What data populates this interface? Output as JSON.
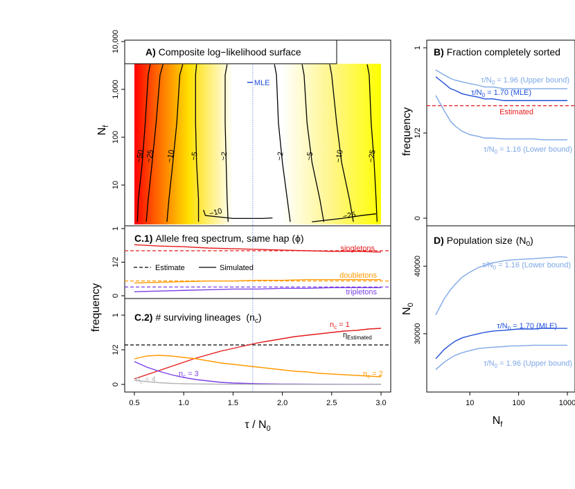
{
  "chart_data": [
    {
      "panel": "A",
      "type": "heatmap",
      "title_letter": "A)",
      "title": "Composite log−likelihood surface",
      "ylabel": "N",
      "ylabel_sub": "f",
      "xlim": [
        0.5,
        3.0
      ],
      "ylim": [
        1.5,
        10000
      ],
      "y_scale": "log",
      "y_ticks": [
        10,
        100,
        1000,
        10000
      ],
      "y_tick_labels": [
        "10",
        "100",
        "1,000",
        "10,000"
      ],
      "colors": {
        "low": "#ff0000",
        "mid": "#ffff00",
        "high": "#ffffff"
      },
      "contours": [
        {
          "label": "−50",
          "x": [
            0.53,
            0.54,
            0.58,
            0.61,
            0.64,
            0.66
          ]
        },
        {
          "label": "−25",
          "x": [
            0.62,
            0.64,
            0.68,
            0.72,
            0.76,
            0.79
          ]
        },
        {
          "label": "−10",
          "x": [
            0.83,
            0.85,
            0.89,
            0.93,
            0.96,
            0.99
          ]
        },
        {
          "label": "−5",
          "x": [
            1.15,
            1.15,
            1.13,
            1.12,
            1.12,
            1.13
          ]
        },
        {
          "label": "−2",
          "x": [
            1.45,
            1.44,
            1.43,
            1.42,
            1.42,
            1.44
          ]
        },
        {
          "label": "−2",
          "x": [
            2.08,
            2.05,
            2.0,
            1.96,
            1.94,
            1.92
          ]
        },
        {
          "label": "−5",
          "x": [
            2.42,
            2.38,
            2.3,
            2.25,
            2.22,
            2.2
          ]
        },
        {
          "label": "−10",
          "x": [
            2.72,
            2.68,
            2.6,
            2.55,
            2.5,
            2.48
          ]
        },
        {
          "label": "−25",
          "x": [
            2.96,
            2.95,
            2.93,
            2.9,
            2.88,
            2.86
          ]
        }
      ],
      "contour_y": [
        1.7,
        5,
        30,
        200,
        2000,
        10000
      ],
      "inner_contour": {
        "label": "−10",
        "x": [
          1.2,
          1.22,
          1.5,
          1.8,
          1.9
        ],
        "y": [
          3,
          2.3,
          2.0,
          2.0,
          2.05
        ]
      },
      "lower_contour": {
        "label": "−25",
        "x": [
          2.3,
          2.6,
          2.8,
          2.95
        ],
        "y": [
          1.7,
          2.0,
          2.3,
          2.5
        ]
      },
      "mle": {
        "label": "MLE",
        "x": 1.7,
        "y": 1400
      }
    },
    {
      "panel": "C.1",
      "type": "line",
      "title_letter": "C.1)",
      "title": "Allele freq spectrum, same hap (ϕ)",
      "xlim": [
        0.5,
        3.0
      ],
      "ylim": [
        0,
        1
      ],
      "y_tick_labels": [
        "0",
        "1/2",
        "1"
      ],
      "legend": {
        "estimate": "Estimate",
        "simulated": "Simulated",
        "placement": "left"
      },
      "x": [
        0.5,
        0.75,
        1.0,
        1.25,
        1.5,
        1.75,
        2.0,
        2.25,
        2.5,
        2.75,
        3.0
      ],
      "series": [
        {
          "name": "singletons",
          "color": "#e41a1c",
          "estimate": 0.67,
          "values": [
            0.76,
            0.74,
            0.73,
            0.71,
            0.7,
            0.69,
            0.68,
            0.67,
            0.66,
            0.66,
            0.65
          ]
        },
        {
          "name": "doubletons",
          "color": "#ff9900",
          "estimate": 0.22,
          "values": [
            0.19,
            0.2,
            0.21,
            0.22,
            0.22,
            0.23,
            0.23,
            0.24,
            0.24,
            0.24,
            0.24
          ]
        },
        {
          "name": "tripletons",
          "color": "#7b3fe4",
          "estimate": 0.13,
          "values": [
            0.06,
            0.07,
            0.08,
            0.09,
            0.1,
            0.1,
            0.11,
            0.11,
            0.12,
            0.12,
            0.12
          ]
        }
      ]
    },
    {
      "panel": "C.2",
      "type": "line",
      "title_letter": "C.2)",
      "title": "# surviving lineages",
      "title_symbol": "n",
      "title_symbol_sub": "c",
      "ylabel": "frequency",
      "xlabel": "τ / N",
      "xlabel_sub": "0",
      "xlim": [
        0.5,
        3.0
      ],
      "x_ticks": [
        0.5,
        1.0,
        1.5,
        2.0,
        2.5,
        3.0
      ],
      "x_tick_labels": [
        "0.5",
        "1.0",
        "1.5",
        "2.0",
        "2.5",
        "3.0"
      ],
      "ylim": [
        0,
        1
      ],
      "y_tick_labels": [
        "0",
        "1/2",
        "1"
      ],
      "estimate_line": {
        "value": 0.57,
        "label": "η",
        "label_sub": "Estimated"
      },
      "x": [
        0.5,
        0.625,
        0.75,
        0.875,
        1.0,
        1.125,
        1.25,
        1.375,
        1.5,
        1.625,
        1.75,
        1.875,
        2.0,
        2.125,
        2.25,
        2.375,
        2.5,
        2.625,
        2.75,
        2.875,
        3.0
      ],
      "series": [
        {
          "name": "n",
          "name_sub": "c",
          "name_suffix": " = 1",
          "color": "#e41a1c",
          "values": [
            0.08,
            0.14,
            0.2,
            0.26,
            0.32,
            0.38,
            0.43,
            0.48,
            0.52,
            0.56,
            0.6,
            0.63,
            0.66,
            0.69,
            0.71,
            0.73,
            0.75,
            0.77,
            0.78,
            0.8,
            0.81
          ]
        },
        {
          "name": "n",
          "name_sub": "c",
          "name_suffix": " = 2",
          "color": "#ff9900",
          "values": [
            0.37,
            0.41,
            0.42,
            0.41,
            0.39,
            0.37,
            0.34,
            0.31,
            0.29,
            0.27,
            0.25,
            0.23,
            0.21,
            0.19,
            0.18,
            0.16,
            0.15,
            0.14,
            0.13,
            0.12,
            0.11
          ]
        },
        {
          "name": "n",
          "name_sub": "c",
          "name_suffix": " = 3",
          "color": "#7b3fe4",
          "values": [
            0.33,
            0.25,
            0.19,
            0.14,
            0.1,
            0.07,
            0.05,
            0.03,
            0.02,
            0.015,
            0.01,
            0.008,
            0.006,
            0.005,
            0.004,
            0.003,
            0.003,
            0.002,
            0.002,
            0.002,
            0.002
          ]
        },
        {
          "name": "n",
          "name_sub": "c",
          "name_suffix": " = 4",
          "color": "#b3b3b3",
          "values": [
            0.06,
            0.04,
            0.025,
            0.015,
            0.01,
            0.007,
            0.005,
            0.003,
            0.002,
            0.002,
            0.001,
            0.001,
            0.001,
            0.001,
            0.001,
            0.001,
            0.001,
            0.001,
            0.001,
            0.001,
            0.001
          ]
        }
      ]
    },
    {
      "panel": "B",
      "type": "line",
      "title_letter": "B)",
      "title": "Fraction completely sorted",
      "ylabel": "frequency",
      "xlim": [
        2,
        1000
      ],
      "x_scale": "log",
      "ylim": [
        0,
        1
      ],
      "y_tick_labels": [
        "0",
        "1/2",
        "1"
      ],
      "estimate_line": {
        "value": 0.66,
        "label": "Estimated",
        "color": "#e41a1c"
      },
      "x": [
        2,
        3,
        4,
        5,
        7,
        10,
        15,
        20,
        30,
        50,
        70,
        100,
        200,
        300,
        500,
        1000
      ],
      "series": [
        {
          "name": "τ/N",
          "name_sub": "0",
          "name_suffix": " = 1.96 (Upper bound)",
          "color": "#7da7e6",
          "values": [
            0.87,
            0.84,
            0.82,
            0.81,
            0.8,
            0.79,
            0.78,
            0.77,
            0.77,
            0.76,
            0.76,
            0.76,
            0.76,
            0.76,
            0.76,
            0.76
          ]
        },
        {
          "name": "τ/N",
          "name_sub": "0",
          "name_suffix": " = 1.70 (MLE)",
          "color": "#1f4fd9",
          "values": [
            0.83,
            0.79,
            0.76,
            0.75,
            0.73,
            0.72,
            0.71,
            0.7,
            0.7,
            0.69,
            0.69,
            0.69,
            0.69,
            0.69,
            0.69,
            0.69
          ]
        },
        {
          "name": "τ/N",
          "name_sub": "0",
          "name_suffix": " = 1.16 (Lower bound)",
          "color": "#7da7e6",
          "values": [
            0.72,
            0.63,
            0.57,
            0.54,
            0.51,
            0.49,
            0.48,
            0.47,
            0.47,
            0.465,
            0.465,
            0.465,
            0.465,
            0.46,
            0.46,
            0.46
          ]
        }
      ]
    },
    {
      "panel": "D",
      "type": "line",
      "title_letter": "D)",
      "title": "Population size",
      "title_symbol": "N",
      "title_symbol_sub": "0",
      "ylabel": "N",
      "ylabel_sub": "0",
      "xlabel": "N",
      "xlabel_sub": "f",
      "xlim": [
        2,
        1000
      ],
      "x_scale": "log",
      "x_ticks": [
        10,
        100,
        1000
      ],
      "x_tick_labels": [
        "10",
        "100",
        "1000"
      ],
      "ylim": [
        22500,
        43000
      ],
      "y_ticks": [
        30000,
        40000
      ],
      "y_tick_labels": [
        "30000",
        "40000"
      ],
      "x": [
        2,
        3,
        4,
        5,
        7,
        10,
        15,
        20,
        30,
        50,
        70,
        100,
        200,
        300,
        500,
        700,
        1000
      ],
      "series": [
        {
          "name": "τ/N",
          "name_sub": "0",
          "name_suffix": " = 1.16 (Lower bound)",
          "color": "#7da7e6",
          "values": [
            32800,
            35200,
            36500,
            37300,
            38400,
            39100,
            39800,
            40100,
            40500,
            40800,
            40900,
            41000,
            41100,
            41200,
            41300,
            41400,
            41300
          ]
        },
        {
          "name": "τ/N",
          "name_sub": "0",
          "name_suffix": " = 1.70 (MLE)",
          "color": "#1f4fd9",
          "values": [
            26300,
            27700,
            28400,
            28900,
            29400,
            29700,
            30000,
            30200,
            30400,
            30500,
            30600,
            30700,
            30700,
            30800,
            30800,
            30800,
            30800
          ]
        },
        {
          "name": "τ/N",
          "name_sub": "0",
          "name_suffix": " = 1.96 (Upper bound)",
          "color": "#7da7e6",
          "values": [
            24700,
            25800,
            26400,
            26800,
            27200,
            27500,
            27800,
            27900,
            28000,
            28100,
            28200,
            28200,
            28300,
            28300,
            28300,
            28300,
            28300
          ]
        }
      ]
    }
  ]
}
